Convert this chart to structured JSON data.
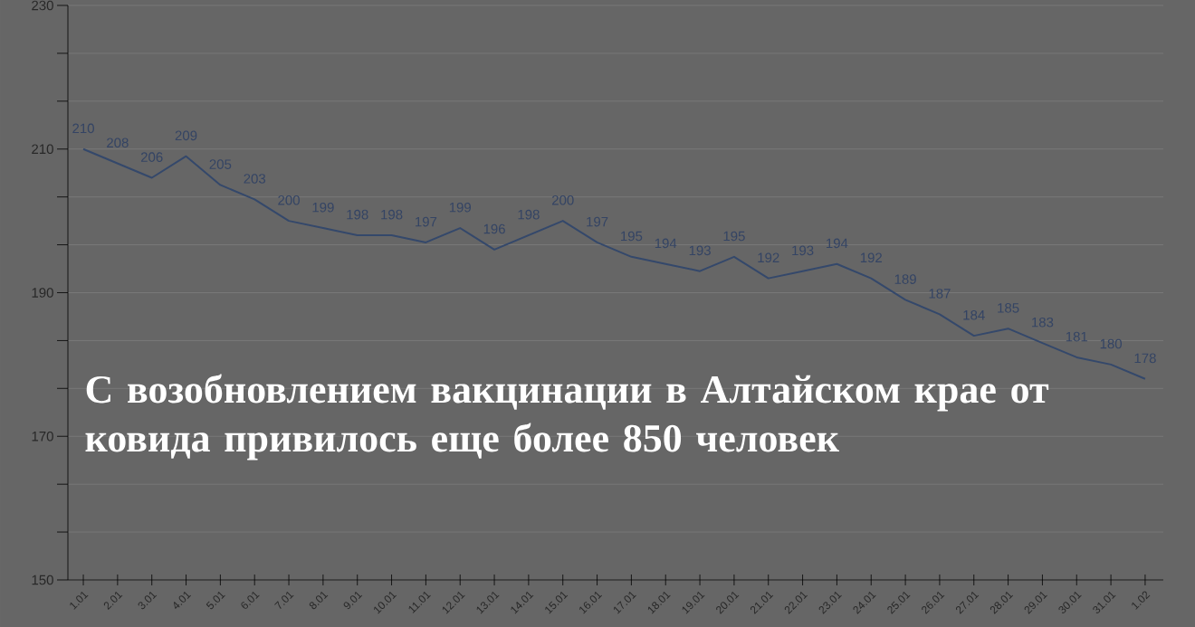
{
  "chart_data": {
    "type": "line",
    "title": "С возобновлением вакцинации в Алтайском крае от ковида привилось еще более 850 человек",
    "categories": [
      "1.01",
      "2.01",
      "3.01",
      "4.01",
      "5.01",
      "6.01",
      "7.01",
      "8.01",
      "9.01",
      "10.01",
      "11.01",
      "12.01",
      "13.01",
      "14.01",
      "15.01",
      "16.01",
      "17.01",
      "18.01",
      "19.01",
      "20.01",
      "21.01",
      "22.01",
      "23.01",
      "24.01",
      "25.01",
      "26.01",
      "27.01",
      "28.01",
      "29.01",
      "30.01",
      "31.01",
      "1.02"
    ],
    "values": [
      210,
      208,
      206,
      209,
      205,
      203,
      200,
      199,
      198,
      198,
      197,
      199,
      196,
      198,
      200,
      197,
      195,
      194,
      193,
      195,
      192,
      193,
      194,
      192,
      189,
      187,
      184,
      185,
      183,
      181,
      180,
      178
    ],
    "color": "#34486b",
    "data_labels": true,
    "grid": "y",
    "ylim": [
      150,
      230
    ],
    "yticks": [
      150,
      {
        "value": 156.67,
        "label": null
      },
      {
        "value": 163.33,
        "label": null
      },
      170,
      {
        "value": 176.67,
        "label": null
      },
      {
        "value": 183.33,
        "label": null
      },
      190,
      {
        "value": 196.67,
        "label": null
      },
      {
        "value": 203.33,
        "label": null
      },
      210,
      {
        "value": 216.67,
        "label": null
      },
      {
        "value": 223.33,
        "label": null
      },
      230
    ]
  }
}
